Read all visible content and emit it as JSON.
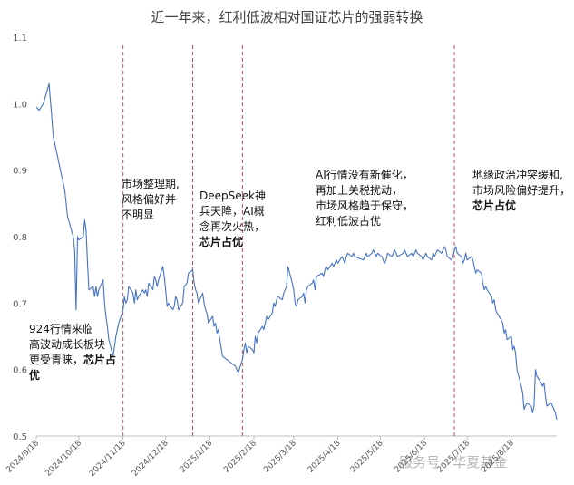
{
  "chart_data": {
    "type": "line",
    "title": "近一年来，红利低波相对国证芯片的强弱转换",
    "ylim": [
      0.5,
      1.1
    ],
    "yticks": [
      "0.5",
      "0.6",
      "0.7",
      "0.8",
      "0.9",
      "1.0",
      "1.1"
    ],
    "xtick_labels": [
      "2024/9/18",
      "2024/10/18",
      "2024/11/18",
      "2024/12/18",
      "2025/1/18",
      "2025/2/18",
      "2025/3/18",
      "2025/4/18",
      "2025/5/18",
      "2025/6/18",
      "2025/7/18",
      "2025/8/18"
    ],
    "grid": false,
    "legend": "none",
    "line_color": "#4472c4",
    "divider_color": "#c0504d",
    "series": [
      {
        "values": [
          [
            "2024-09-18",
            0.995
          ],
          [
            "2024-09-20",
            0.99
          ],
          [
            "2024-09-23",
            1.0
          ],
          [
            "2024-09-25",
            1.015
          ],
          [
            "2024-09-27",
            1.03
          ],
          [
            "2024-09-30",
            0.95
          ],
          [
            "2024-10-08",
            0.87
          ],
          [
            "2024-10-10",
            0.83
          ],
          [
            "2024-10-14",
            0.8
          ],
          [
            "2024-10-15",
            0.78
          ],
          [
            "2024-10-16",
            0.69
          ],
          [
            "2024-10-17",
            0.8
          ],
          [
            "2024-10-18",
            0.795
          ],
          [
            "2024-10-21",
            0.8
          ],
          [
            "2024-10-22",
            0.825
          ],
          [
            "2024-10-23",
            0.81
          ],
          [
            "2024-10-24",
            0.76
          ],
          [
            "2024-10-25",
            0.72
          ],
          [
            "2024-10-28",
            0.725
          ],
          [
            "2024-10-29",
            0.71
          ],
          [
            "2024-10-30",
            0.725
          ],
          [
            "2024-10-31",
            0.71
          ],
          [
            "2024-11-01",
            0.72
          ],
          [
            "2024-11-04",
            0.735
          ],
          [
            "2024-11-05",
            0.7
          ],
          [
            "2024-11-06",
            0.68
          ],
          [
            "2024-11-07",
            0.665
          ],
          [
            "2024-11-08",
            0.645
          ],
          [
            "2024-11-11",
            0.62
          ],
          [
            "2024-11-12",
            0.635
          ],
          [
            "2024-11-13",
            0.65
          ],
          [
            "2024-11-15",
            0.67
          ],
          [
            "2024-11-18",
            0.69
          ],
          [
            "2024-11-19",
            0.71
          ],
          [
            "2024-11-20",
            0.7
          ],
          [
            "2024-11-21",
            0.705
          ],
          [
            "2024-11-22",
            0.725
          ],
          [
            "2024-11-25",
            0.715
          ],
          [
            "2024-11-26",
            0.7
          ],
          [
            "2024-11-27",
            0.72
          ],
          [
            "2024-11-28",
            0.705
          ],
          [
            "2024-11-29",
            0.71
          ],
          [
            "2024-12-02",
            0.72
          ],
          [
            "2024-12-03",
            0.715
          ],
          [
            "2024-12-04",
            0.72
          ],
          [
            "2024-12-05",
            0.71
          ],
          [
            "2024-12-06",
            0.73
          ],
          [
            "2024-12-09",
            0.72
          ],
          [
            "2024-12-10",
            0.74
          ],
          [
            "2024-12-11",
            0.735
          ],
          [
            "2024-12-12",
            0.725
          ],
          [
            "2024-12-13",
            0.735
          ],
          [
            "2024-12-16",
            0.755
          ],
          [
            "2024-12-17",
            0.74
          ],
          [
            "2024-12-18",
            0.72
          ],
          [
            "2024-12-19",
            0.695
          ],
          [
            "2024-12-20",
            0.7
          ],
          [
            "2024-12-23",
            0.69
          ],
          [
            "2024-12-24",
            0.695
          ],
          [
            "2024-12-25",
            0.71
          ],
          [
            "2024-12-26",
            0.705
          ],
          [
            "2024-12-27",
            0.69
          ],
          [
            "2024-12-30",
            0.7
          ],
          [
            "2024-12-31",
            0.725
          ],
          [
            "2025-01-02",
            0.73
          ],
          [
            "2025-01-03",
            0.745
          ],
          [
            "2025-01-06",
            0.75
          ],
          [
            "2025-01-07",
            0.73
          ],
          [
            "2025-01-08",
            0.72
          ],
          [
            "2025-01-09",
            0.715
          ],
          [
            "2025-01-10",
            0.7
          ],
          [
            "2025-01-13",
            0.715
          ],
          [
            "2025-01-14",
            0.7
          ],
          [
            "2025-01-15",
            0.69
          ],
          [
            "2025-01-16",
            0.685
          ],
          [
            "2025-01-17",
            0.67
          ],
          [
            "2025-01-20",
            0.68
          ],
          [
            "2025-01-21",
            0.665
          ],
          [
            "2025-01-22",
            0.67
          ],
          [
            "2025-01-23",
            0.655
          ],
          [
            "2025-01-24",
            0.66
          ],
          [
            "2025-01-27",
            0.62
          ],
          [
            "2025-02-05",
            0.605
          ],
          [
            "2025-02-06",
            0.6
          ],
          [
            "2025-02-07",
            0.595
          ],
          [
            "2025-02-10",
            0.615
          ],
          [
            "2025-02-11",
            0.63
          ],
          [
            "2025-02-12",
            0.64
          ],
          [
            "2025-02-13",
            0.625
          ],
          [
            "2025-02-14",
            0.635
          ],
          [
            "2025-02-17",
            0.63
          ],
          [
            "2025-02-18",
            0.625
          ],
          [
            "2025-02-19",
            0.65
          ],
          [
            "2025-02-20",
            0.64
          ],
          [
            "2025-02-21",
            0.655
          ],
          [
            "2025-02-24",
            0.665
          ],
          [
            "2025-02-25",
            0.66
          ],
          [
            "2025-02-26",
            0.67
          ],
          [
            "2025-02-27",
            0.68
          ],
          [
            "2025-02-28",
            0.675
          ],
          [
            "2025-03-03",
            0.685
          ],
          [
            "2025-03-04",
            0.7
          ],
          [
            "2025-03-05",
            0.695
          ],
          [
            "2025-03-06",
            0.705
          ],
          [
            "2025-03-07",
            0.71
          ],
          [
            "2025-03-10",
            0.705
          ],
          [
            "2025-03-11",
            0.715
          ],
          [
            "2025-03-12",
            0.72
          ],
          [
            "2025-03-13",
            0.725
          ],
          [
            "2025-03-14",
            0.755
          ],
          [
            "2025-03-17",
            0.73
          ],
          [
            "2025-03-18",
            0.72
          ],
          [
            "2025-03-19",
            0.7
          ],
          [
            "2025-03-20",
            0.695
          ],
          [
            "2025-03-21",
            0.705
          ],
          [
            "2025-03-24",
            0.71
          ],
          [
            "2025-03-25",
            0.715
          ],
          [
            "2025-03-26",
            0.7
          ],
          [
            "2025-03-27",
            0.72
          ],
          [
            "2025-03-28",
            0.725
          ],
          [
            "2025-03-31",
            0.73
          ],
          [
            "2025-04-01",
            0.735
          ],
          [
            "2025-04-02",
            0.72
          ],
          [
            "2025-04-03",
            0.74
          ],
          [
            "2025-04-07",
            0.745
          ],
          [
            "2025-04-08",
            0.74
          ],
          [
            "2025-04-09",
            0.75
          ],
          [
            "2025-04-10",
            0.755
          ],
          [
            "2025-04-11",
            0.75
          ],
          [
            "2025-04-14",
            0.76
          ],
          [
            "2025-04-15",
            0.755
          ],
          [
            "2025-04-16",
            0.76
          ],
          [
            "2025-04-17",
            0.765
          ],
          [
            "2025-04-18",
            0.76
          ],
          [
            "2025-04-21",
            0.77
          ],
          [
            "2025-04-22",
            0.765
          ],
          [
            "2025-04-23",
            0.76
          ],
          [
            "2025-04-24",
            0.77
          ],
          [
            "2025-04-25",
            0.775
          ],
          [
            "2025-04-28",
            0.77
          ],
          [
            "2025-04-29",
            0.775
          ],
          [
            "2025-04-30",
            0.77
          ],
          [
            "2025-05-06",
            0.765
          ],
          [
            "2025-05-07",
            0.77
          ],
          [
            "2025-05-08",
            0.775
          ],
          [
            "2025-05-09",
            0.77
          ],
          [
            "2025-05-12",
            0.775
          ],
          [
            "2025-05-13",
            0.78
          ],
          [
            "2025-05-14",
            0.775
          ],
          [
            "2025-05-15",
            0.77
          ],
          [
            "2025-05-16",
            0.775
          ],
          [
            "2025-05-19",
            0.77
          ],
          [
            "2025-05-20",
            0.765
          ],
          [
            "2025-05-21",
            0.76
          ],
          [
            "2025-05-22",
            0.765
          ],
          [
            "2025-05-23",
            0.775
          ],
          [
            "2025-05-26",
            0.77
          ],
          [
            "2025-05-27",
            0.775
          ],
          [
            "2025-05-28",
            0.78
          ],
          [
            "2025-05-29",
            0.775
          ],
          [
            "2025-05-30",
            0.77
          ],
          [
            "2025-06-03",
            0.775
          ],
          [
            "2025-06-04",
            0.78
          ],
          [
            "2025-06-05",
            0.775
          ],
          [
            "2025-06-06",
            0.77
          ],
          [
            "2025-06-09",
            0.775
          ],
          [
            "2025-06-10",
            0.77
          ],
          [
            "2025-06-11",
            0.775
          ],
          [
            "2025-06-12",
            0.78
          ],
          [
            "2025-06-13",
            0.775
          ],
          [
            "2025-06-16",
            0.77
          ],
          [
            "2025-06-17",
            0.765
          ],
          [
            "2025-06-18",
            0.77
          ],
          [
            "2025-06-19",
            0.775
          ],
          [
            "2025-06-20",
            0.77
          ],
          [
            "2025-06-23",
            0.765
          ],
          [
            "2025-06-24",
            0.775
          ],
          [
            "2025-06-25",
            0.77
          ],
          [
            "2025-06-26",
            0.775
          ],
          [
            "2025-06-27",
            0.78
          ],
          [
            "2025-06-30",
            0.775
          ],
          [
            "2025-07-01",
            0.78
          ],
          [
            "2025-07-02",
            0.785
          ],
          [
            "2025-07-03",
            0.78
          ],
          [
            "2025-07-04",
            0.77
          ],
          [
            "2025-07-07",
            0.765
          ],
          [
            "2025-07-08",
            0.77
          ],
          [
            "2025-07-09",
            0.78
          ],
          [
            "2025-07-10",
            0.785
          ],
          [
            "2025-07-11",
            0.775
          ],
          [
            "2025-07-14",
            0.77
          ],
          [
            "2025-07-15",
            0.76
          ],
          [
            "2025-07-16",
            0.765
          ],
          [
            "2025-07-17",
            0.775
          ],
          [
            "2025-07-18",
            0.765
          ],
          [
            "2025-07-21",
            0.77
          ],
          [
            "2025-07-22",
            0.765
          ],
          [
            "2025-07-23",
            0.755
          ],
          [
            "2025-07-24",
            0.745
          ],
          [
            "2025-07-25",
            0.75
          ],
          [
            "2025-07-28",
            0.745
          ],
          [
            "2025-07-29",
            0.73
          ],
          [
            "2025-07-30",
            0.72
          ],
          [
            "2025-07-31",
            0.725
          ],
          [
            "2025-08-01",
            0.72
          ],
          [
            "2025-08-04",
            0.71
          ],
          [
            "2025-08-05",
            0.7
          ],
          [
            "2025-08-06",
            0.705
          ],
          [
            "2025-08-07",
            0.69
          ],
          [
            "2025-08-08",
            0.685
          ],
          [
            "2025-08-11",
            0.675
          ],
          [
            "2025-08-12",
            0.67
          ],
          [
            "2025-08-13",
            0.655
          ],
          [
            "2025-08-14",
            0.66
          ],
          [
            "2025-08-15",
            0.645
          ],
          [
            "2025-08-18",
            0.65
          ],
          [
            "2025-08-19",
            0.63
          ],
          [
            "2025-08-20",
            0.635
          ],
          [
            "2025-08-21",
            0.625
          ],
          [
            "2025-08-22",
            0.6
          ],
          [
            "2025-08-25",
            0.575
          ],
          [
            "2025-08-26",
            0.565
          ],
          [
            "2025-08-27",
            0.54
          ],
          [
            "2025-08-28",
            0.545
          ],
          [
            "2025-08-29",
            0.55
          ],
          [
            "2025-09-01",
            0.545
          ],
          [
            "2025-09-02",
            0.535
          ],
          [
            "2025-09-03",
            0.545
          ],
          [
            "2025-09-04",
            0.6
          ],
          [
            "2025-09-05",
            0.59
          ],
          [
            "2025-09-08",
            0.58
          ],
          [
            "2025-09-09",
            0.575
          ],
          [
            "2025-09-10",
            0.58
          ],
          [
            "2025-09-11",
            0.56
          ],
          [
            "2025-09-12",
            0.545
          ],
          [
            "2025-09-15",
            0.55
          ],
          [
            "2025-09-16",
            0.545
          ],
          [
            "2025-09-17",
            0.54
          ],
          [
            "2025-09-18",
            0.535
          ],
          [
            "2025-09-19",
            0.525
          ]
        ]
      }
    ],
    "dividers": [
      "2024-11-18",
      "2025-01-06",
      "2025-02-10",
      "2025-07-09"
    ],
    "annotations": [
      {
        "lines": [
          "924行情来临",
          "高波动成长板块",
          "更受青睐，"
        ],
        "bold": "芯片占优"
      },
      {
        "lines": [
          "市场整理期,",
          "风格偏好并",
          "不明显"
        ],
        "bold": ""
      },
      {
        "lines": [
          "DeepSeek神",
          "兵天降，AI概",
          "念再次火热，"
        ],
        "bold": "芯片占优"
      },
      {
        "lines": [
          "AI行情没有新催化，",
          "再加上关税扰动，",
          "市场风格趋于保守，",
          "红利低波占优"
        ],
        "bold": ""
      },
      {
        "lines": [
          "地缘政治冲突缓和,",
          "市场风险偏好提升，"
        ],
        "bold": "芯片占优"
      }
    ]
  },
  "watermark": "服务号 · 华夏基金"
}
